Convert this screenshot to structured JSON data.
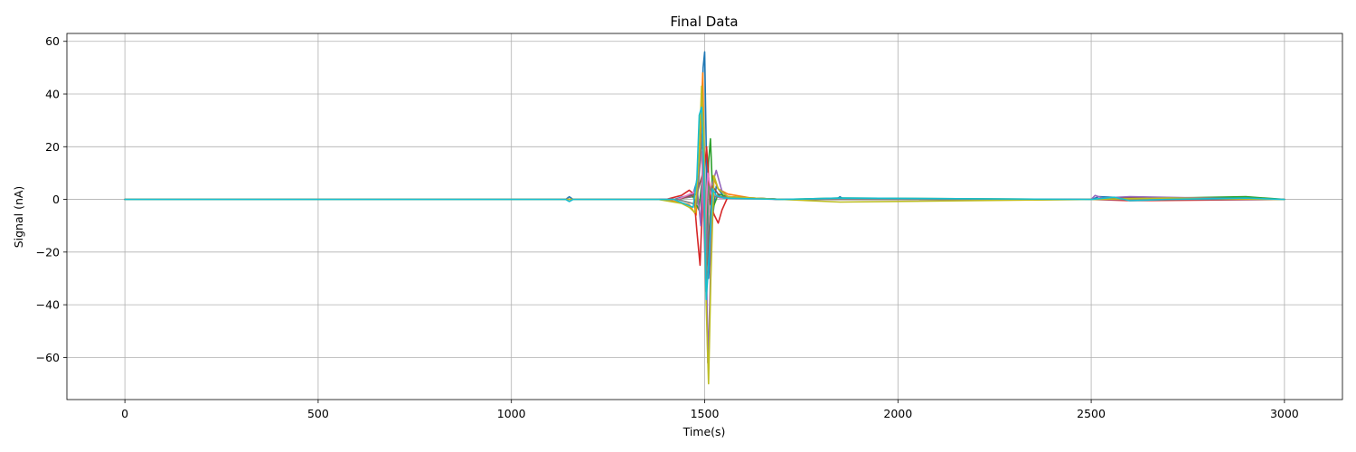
{
  "chart_data": {
    "type": "line",
    "title": "Final Data",
    "xlabel": "Time(s)",
    "ylabel": "Signal (nA)",
    "xlim": [
      -150,
      3150
    ],
    "ylim": [
      -76,
      63
    ],
    "xticks": [
      0,
      500,
      1000,
      1500,
      2000,
      2500,
      3000
    ],
    "yticks": [
      60,
      40,
      20,
      0,
      -20,
      -40,
      -60
    ],
    "xtick_labels": [
      "0",
      "500",
      "1000",
      "1500",
      "2000",
      "2500",
      "3000"
    ],
    "ytick_labels": [
      "60",
      "40",
      "20",
      "0",
      "−20",
      "−40",
      "−60"
    ],
    "grid": true,
    "legend": "none",
    "colors": [
      "#1f77b4",
      "#ff7f0e",
      "#2ca02c",
      "#d62728",
      "#9467bd",
      "#8c564b",
      "#e377c2",
      "#7f7f7f",
      "#bcbd22",
      "#17becf"
    ],
    "series": [
      {
        "color": "#1f77b4",
        "x": [
          0,
          1140,
          1150,
          1160,
          1420,
          1470,
          1482,
          1490,
          1496,
          1500,
          1505,
          1510,
          1518,
          1530,
          1550,
          1600,
          1650,
          1700,
          1840,
          1850,
          1860,
          2500,
          2520,
          2600,
          2700,
          2850,
          2900,
          3000
        ],
        "y": [
          0,
          0,
          1,
          0,
          0,
          2,
          8,
          22,
          50,
          56,
          12,
          -30,
          -10,
          5,
          1,
          0.5,
          0.3,
          0,
          0,
          1,
          0,
          0,
          1,
          0.5,
          0,
          0.5,
          0,
          0
        ]
      },
      {
        "color": "#ff7f0e",
        "x": [
          0,
          1400,
          1460,
          1478,
          1488,
          1495,
          1502,
          1510,
          1520,
          1535,
          1560,
          1620,
          1700,
          2500,
          2600,
          3000
        ],
        "y": [
          0,
          0,
          -2,
          -6,
          20,
          48,
          -10,
          -18,
          9,
          4,
          2,
          0.5,
          0,
          0,
          0.5,
          0
        ]
      },
      {
        "color": "#2ca02c",
        "x": [
          0,
          1420,
          1470,
          1485,
          1495,
          1502,
          1510,
          1515,
          1522,
          1535,
          1560,
          1620,
          1700,
          1850,
          2500,
          2900,
          3000
        ],
        "y": [
          0,
          0,
          1,
          -4,
          10,
          -20,
          14,
          23,
          -3,
          2,
          1,
          0.5,
          0,
          0.5,
          0,
          1,
          0
        ]
      },
      {
        "color": "#d62728",
        "x": [
          0,
          1400,
          1440,
          1460,
          1472,
          1480,
          1488,
          1496,
          1505,
          1515,
          1525,
          1535,
          1545,
          1560,
          1600,
          1700,
          2500,
          2600,
          3000
        ],
        "y": [
          0,
          0,
          1.5,
          3.5,
          2,
          -12,
          -25,
          5,
          20,
          -2,
          -6,
          -9,
          -4,
          1,
          0.5,
          0,
          0,
          -0.5,
          0
        ]
      },
      {
        "color": "#9467bd",
        "x": [
          0,
          1420,
          1465,
          1480,
          1490,
          1497,
          1503,
          1508,
          1513,
          1520,
          1530,
          1545,
          1560,
          1600,
          1700,
          2500,
          2510,
          2530,
          2600,
          3000
        ],
        "y": [
          0,
          0,
          1,
          5,
          -10,
          30,
          -5,
          -62,
          -40,
          6,
          11,
          3,
          1,
          0.5,
          0,
          0,
          1.5,
          0.5,
          1,
          0
        ]
      },
      {
        "color": "#8c564b",
        "x": [
          0,
          1430,
          1480,
          1495,
          1504,
          1510,
          1520,
          1540,
          1700,
          2500,
          2600,
          3000
        ],
        "y": [
          0,
          0,
          2,
          10,
          -30,
          -15,
          5,
          1,
          0,
          0,
          0.5,
          0
        ]
      },
      {
        "color": "#e377c2",
        "x": [
          0,
          1430,
          1478,
          1492,
          1500,
          1508,
          1518,
          1540,
          1700,
          3000
        ],
        "y": [
          0,
          0,
          3,
          18,
          -20,
          10,
          2,
          0.5,
          0,
          0
        ]
      },
      {
        "color": "#7f7f7f",
        "x": [
          0,
          1430,
          1480,
          1494,
          1503,
          1512,
          1525,
          1600,
          1700,
          3000
        ],
        "y": [
          0,
          0,
          -2,
          25,
          -35,
          5,
          1,
          0.5,
          0,
          0
        ]
      },
      {
        "color": "#bcbd22",
        "x": [
          0,
          1380,
          1440,
          1460,
          1475,
          1485,
          1492,
          1498,
          1504,
          1510,
          1516,
          1524,
          1535,
          1560,
          1620,
          1700,
          1850,
          2500,
          2700,
          3000
        ],
        "y": [
          0,
          0,
          -1.5,
          -3,
          -5,
          15,
          43,
          25,
          -40,
          -70,
          -30,
          9,
          4,
          1,
          0.5,
          0,
          -1,
          0,
          0.5,
          0
        ]
      },
      {
        "color": "#17becf",
        "x": [
          0,
          1140,
          1150,
          1160,
          1420,
          1470,
          1480,
          1486,
          1492,
          1498,
          1504,
          1510,
          1520,
          1530,
          1550,
          1600,
          1700,
          1850,
          2500,
          2560,
          2600,
          2700,
          2900,
          3000
        ],
        "y": [
          0,
          0,
          -0.8,
          0,
          0,
          -3,
          8,
          32,
          35,
          10,
          -38,
          -25,
          4,
          1.5,
          0.5,
          0.3,
          0,
          0.5,
          0,
          0.8,
          -0.5,
          0,
          0.5,
          0
        ]
      }
    ]
  }
}
